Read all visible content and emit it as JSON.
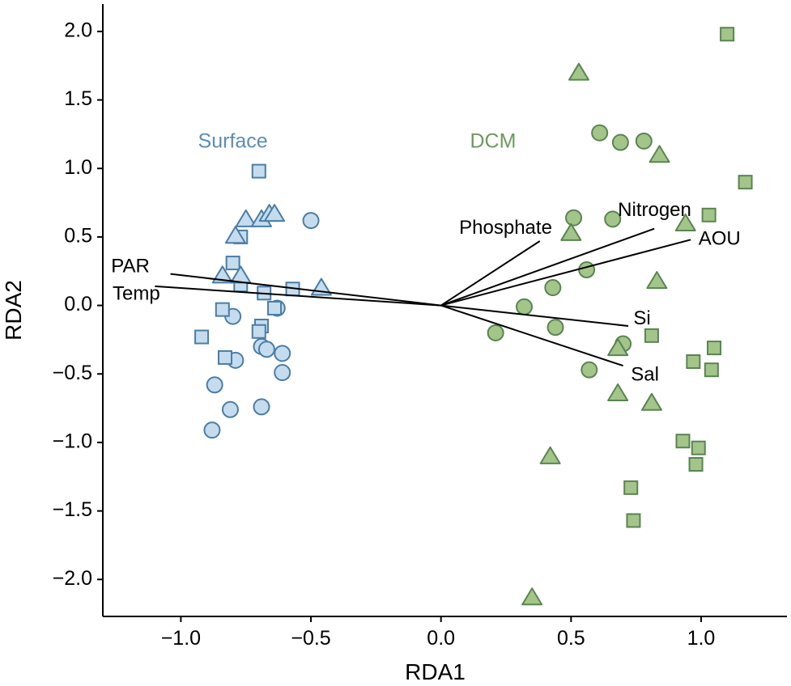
{
  "chart_data": {
    "type": "scatter",
    "title": "",
    "xlabel": "RDA1",
    "ylabel": "RDA2",
    "xlim": [
      -1.3,
      1.33
    ],
    "ylim": [
      -2.27,
      2.2
    ],
    "x_ticks": [
      -1.0,
      -0.5,
      0.0,
      0.5,
      1.0
    ],
    "x_tick_labels": [
      "−1.0",
      "−0.5",
      "0.0",
      "0.5",
      "1.0"
    ],
    "y_ticks": [
      2.0,
      1.5,
      1.0,
      0.5,
      0.0,
      -0.5,
      -1.0,
      -1.5,
      -2.0
    ],
    "y_tick_labels": [
      "2.0",
      "1.5",
      "1.0",
      "0.5",
      "0.0",
      "−0.5",
      "−1.0",
      "−1.5",
      "−2.0"
    ],
    "grid": false,
    "colors": {
      "surface_fill": "#c5dcee",
      "surface_stroke": "#4a7da5",
      "surface_label": "#5b8db6",
      "dcm_fill": "#a3c589",
      "dcm_stroke": "#5a8452",
      "dcm_label": "#6d9a5e",
      "axis": "#000000"
    },
    "group_labels": [
      {
        "text": "Surface",
        "group": "surface",
        "x": -0.8,
        "y": 1.19
      },
      {
        "text": "DCM",
        "group": "dcm",
        "x": 0.2,
        "y": 1.19
      }
    ],
    "series": [
      {
        "name": "Surface",
        "points": [
          {
            "shape": "circle",
            "x": -0.5,
            "y": 0.62
          },
          {
            "shape": "circle",
            "x": -0.8,
            "y": -0.08
          },
          {
            "shape": "circle",
            "x": -0.79,
            "y": -0.4
          },
          {
            "shape": "circle",
            "x": -0.87,
            "y": -0.58
          },
          {
            "shape": "circle",
            "x": -0.81,
            "y": -0.76
          },
          {
            "shape": "circle",
            "x": -0.88,
            "y": -0.91
          },
          {
            "shape": "circle",
            "x": -0.69,
            "y": -0.74
          },
          {
            "shape": "circle",
            "x": -0.69,
            "y": -0.3
          },
          {
            "shape": "circle",
            "x": -0.67,
            "y": -0.32
          },
          {
            "shape": "circle",
            "x": -0.61,
            "y": -0.35
          },
          {
            "shape": "circle",
            "x": -0.61,
            "y": -0.49
          },
          {
            "shape": "circle",
            "x": -0.63,
            "y": -0.02
          },
          {
            "shape": "square",
            "x": -0.7,
            "y": 0.98
          },
          {
            "shape": "square",
            "x": -0.77,
            "y": 0.5
          },
          {
            "shape": "square",
            "x": -0.8,
            "y": 0.31
          },
          {
            "shape": "square",
            "x": -0.77,
            "y": 0.15
          },
          {
            "shape": "square",
            "x": -0.68,
            "y": 0.09
          },
          {
            "shape": "square",
            "x": -0.57,
            "y": 0.12
          },
          {
            "shape": "square",
            "x": -0.84,
            "y": -0.03
          },
          {
            "shape": "square",
            "x": -0.69,
            "y": -0.15
          },
          {
            "shape": "square",
            "x": -0.7,
            "y": -0.19
          },
          {
            "shape": "square",
            "x": -0.64,
            "y": -0.02
          },
          {
            "shape": "square",
            "x": -0.83,
            "y": -0.38
          },
          {
            "shape": "square",
            "x": -0.92,
            "y": -0.23
          },
          {
            "shape": "triangle",
            "x": -0.75,
            "y": 0.63
          },
          {
            "shape": "triangle",
            "x": -0.69,
            "y": 0.63
          },
          {
            "shape": "triangle",
            "x": -0.66,
            "y": 0.67
          },
          {
            "shape": "triangle",
            "x": -0.64,
            "y": 0.67
          },
          {
            "shape": "triangle",
            "x": -0.79,
            "y": 0.51
          },
          {
            "shape": "triangle",
            "x": -0.84,
            "y": 0.22
          },
          {
            "shape": "triangle",
            "x": -0.77,
            "y": 0.22
          },
          {
            "shape": "triangle",
            "x": -0.46,
            "y": 0.13
          }
        ]
      },
      {
        "name": "DCM",
        "points": [
          {
            "shape": "circle",
            "x": 0.61,
            "y": 1.26
          },
          {
            "shape": "circle",
            "x": 0.69,
            "y": 1.19
          },
          {
            "shape": "circle",
            "x": 0.78,
            "y": 1.2
          },
          {
            "shape": "circle",
            "x": 0.51,
            "y": 0.64
          },
          {
            "shape": "circle",
            "x": 0.66,
            "y": 0.63
          },
          {
            "shape": "circle",
            "x": 0.56,
            "y": 0.26
          },
          {
            "shape": "circle",
            "x": 0.43,
            "y": 0.13
          },
          {
            "shape": "circle",
            "x": 0.32,
            "y": -0.01
          },
          {
            "shape": "circle",
            "x": 0.21,
            "y": -0.2
          },
          {
            "shape": "circle",
            "x": 0.44,
            "y": -0.16
          },
          {
            "shape": "circle",
            "x": 0.7,
            "y": -0.28
          },
          {
            "shape": "circle",
            "x": 0.57,
            "y": -0.47
          },
          {
            "shape": "square",
            "x": 1.1,
            "y": 1.98
          },
          {
            "shape": "square",
            "x": 1.17,
            "y": 0.9
          },
          {
            "shape": "square",
            "x": 1.03,
            "y": 0.66
          },
          {
            "shape": "square",
            "x": 0.81,
            "y": -0.22
          },
          {
            "shape": "square",
            "x": 0.97,
            "y": -0.41
          },
          {
            "shape": "square",
            "x": 1.05,
            "y": -0.31
          },
          {
            "shape": "square",
            "x": 1.04,
            "y": -0.47
          },
          {
            "shape": "square",
            "x": 0.93,
            "y": -0.99
          },
          {
            "shape": "square",
            "x": 0.99,
            "y": -1.04
          },
          {
            "shape": "square",
            "x": 0.98,
            "y": -1.16
          },
          {
            "shape": "square",
            "x": 0.73,
            "y": -1.33
          },
          {
            "shape": "square",
            "x": 0.74,
            "y": -1.57
          },
          {
            "shape": "triangle",
            "x": 0.53,
            "y": 1.7
          },
          {
            "shape": "triangle",
            "x": 0.84,
            "y": 1.1
          },
          {
            "shape": "triangle",
            "x": 0.94,
            "y": 0.6
          },
          {
            "shape": "triangle",
            "x": 0.5,
            "y": 0.53
          },
          {
            "shape": "triangle",
            "x": 0.83,
            "y": 0.18
          },
          {
            "shape": "triangle",
            "x": 0.68,
            "y": -0.31
          },
          {
            "shape": "triangle",
            "x": 0.68,
            "y": -0.64
          },
          {
            "shape": "triangle",
            "x": 0.81,
            "y": -0.71
          },
          {
            "shape": "triangle",
            "x": 0.42,
            "y": -1.1
          },
          {
            "shape": "triangle",
            "x": 0.35,
            "y": -2.13
          }
        ]
      }
    ],
    "vectors": [
      {
        "label": "PAR",
        "x": -1.04,
        "y": 0.23,
        "label_x": -1.12,
        "label_y": 0.28,
        "anchor": "end"
      },
      {
        "label": "Temp",
        "x": -1.1,
        "y": 0.14,
        "label_x": -1.08,
        "label_y": 0.08,
        "anchor": "end"
      },
      {
        "label": "Phosphate",
        "x": 0.38,
        "y": 0.47,
        "label_x": 0.07,
        "label_y": 0.56,
        "anchor": "start"
      },
      {
        "label": "Nitrogen",
        "x": 0.82,
        "y": 0.56,
        "label_x": 0.68,
        "label_y": 0.69,
        "anchor": "start"
      },
      {
        "label": "AOU",
        "x": 0.96,
        "y": 0.48,
        "label_x": 0.99,
        "label_y": 0.48,
        "anchor": "start"
      },
      {
        "label": "Si",
        "x": 0.72,
        "y": -0.15,
        "label_x": 0.74,
        "label_y": -0.1,
        "anchor": "start"
      },
      {
        "label": "Sal",
        "x": 0.7,
        "y": -0.44,
        "label_x": 0.73,
        "label_y": -0.51,
        "anchor": "start"
      }
    ]
  }
}
